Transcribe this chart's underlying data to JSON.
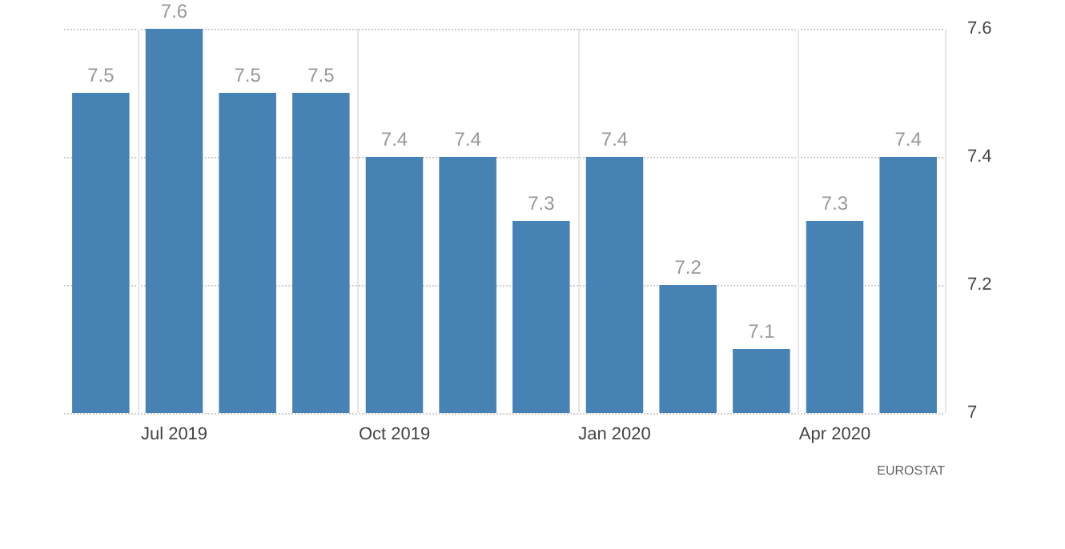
{
  "chart_data": {
    "type": "bar",
    "categories": [
      null,
      "Jul 2019",
      null,
      null,
      "Oct 2019",
      null,
      null,
      "Jan 2020",
      null,
      null,
      "Apr 2020",
      null
    ],
    "values": [
      7.5,
      7.6,
      7.5,
      7.5,
      7.4,
      7.4,
      7.3,
      7.4,
      7.2,
      7.1,
      7.3,
      7.4
    ],
    "color": "#4682b4",
    "ylim": [
      7,
      7.6
    ],
    "yticks": [
      7,
      7.2,
      7.4,
      7.6
    ],
    "grid": true,
    "data_labels": true,
    "annotations": [
      "EUROSTAT"
    ]
  }
}
